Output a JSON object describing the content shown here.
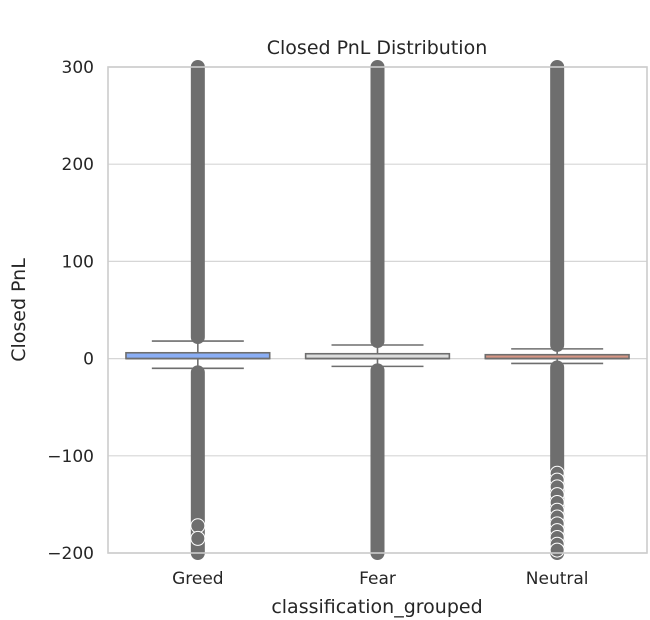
{
  "chart_data": {
    "type": "box",
    "title": "Closed PnL Distribution",
    "xlabel": "classification_grouped",
    "ylabel": "Closed PnL",
    "ylim": [
      -200,
      300
    ],
    "yticks": [
      -200,
      -100,
      0,
      100,
      200,
      300
    ],
    "ytick_labels": [
      "−200",
      "−100",
      "0",
      "100",
      "200",
      "300"
    ],
    "grid": true,
    "categories": [
      "Greed",
      "Fear",
      "Neutral"
    ],
    "colors": {
      "Greed": "#8aaef5",
      "Fear": "#dcdddd",
      "Neutral": "#d79685",
      "outlier": "#6e6e6e",
      "box_edge": "#6e6e6e",
      "grid": "#d6d6d6",
      "frame": "#cccccc"
    },
    "boxes": [
      {
        "category": "Greed",
        "q1": 0,
        "median": 0,
        "q3": 6,
        "whisker_low": -10,
        "whisker_high": 18,
        "outlier_low": -200,
        "outlier_high": 300
      },
      {
        "category": "Fear",
        "q1": 0,
        "median": 0,
        "q3": 5,
        "whisker_low": -8,
        "whisker_high": 14,
        "outlier_low": -200,
        "outlier_high": 300
      },
      {
        "category": "Neutral",
        "q1": 0,
        "median": 0,
        "q3": 4,
        "whisker_low": -5,
        "whisker_high": 10,
        "outlier_low": -200,
        "outlier_high": 300
      }
    ],
    "sparse_outliers": [
      {
        "category": "Neutral",
        "values": [
          -118,
          -125,
          -132,
          -140,
          -148,
          -156,
          -163,
          -170,
          -177,
          -184,
          -191,
          -197
        ]
      },
      {
        "category": "Greed",
        "values": [
          -172,
          -185
        ]
      }
    ]
  }
}
